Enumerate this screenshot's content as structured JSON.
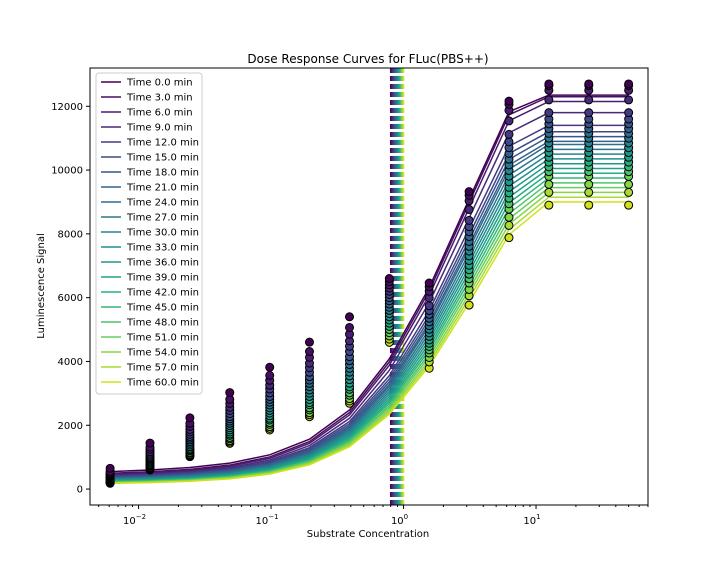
{
  "chart_data": {
    "type": "line",
    "title": "Dose Response Curves for FLuc(PBS++)",
    "xlabel": "Substrate Concentration",
    "ylabel": "Luminescence Signal",
    "x_scale": "log",
    "xlim": [
      0.0043,
      70
    ],
    "ylim": [
      -500,
      13200
    ],
    "grid": false,
    "legend_position": "top-left",
    "x_ticks": [
      {
        "value": 0.01,
        "base": "10",
        "exp": "−2"
      },
      {
        "value": 0.1,
        "base": "10",
        "exp": "−1"
      },
      {
        "value": 1,
        "base": "10",
        "exp": "0"
      },
      {
        "value": 10,
        "base": "10",
        "exp": "1"
      }
    ],
    "y_ticks": [
      "0",
      "2000",
      "4000",
      "6000",
      "8000",
      "10000",
      "12000"
    ],
    "concentrations": [
      0.0061,
      0.0122,
      0.0244,
      0.0488,
      0.0977,
      0.195,
      0.391,
      0.781,
      1.5625,
      3.125,
      6.25,
      12.5,
      25,
      50
    ],
    "colors": [
      "#440154",
      "#470f62",
      "#481d6f",
      "#472a7a",
      "#443983",
      "#3f4889",
      "#3a548c",
      "#34608d",
      "#2f6c8e",
      "#2a768e",
      "#26828e",
      "#228d8d",
      "#1f988b",
      "#1fa287",
      "#26ad81",
      "#35b779",
      "#4ec36b",
      "#69cd5b",
      "#86d549",
      "#a8db34",
      "#d0e11c",
      "#fde725"
    ],
    "series": [
      {
        "name": "Time 0.0 min",
        "ec50": 0.8,
        "curve_low": 700,
        "curve_high": 12350,
        "obs_low": 650,
        "obs_high": 12700
      },
      {
        "name": "Time 3.0 min",
        "ec50": 0.81,
        "curve_low": 630,
        "curve_high": 12300,
        "obs_low": 560,
        "obs_high": 12650
      },
      {
        "name": "Time 6.0 min",
        "ec50": 0.82,
        "curve_low": 590,
        "curve_high": 12150,
        "obs_low": 520,
        "obs_high": 12500
      },
      {
        "name": "Time 9.0 min",
        "ec50": 0.83,
        "curve_low": 550,
        "curve_high": 11800,
        "obs_low": 480,
        "obs_high": 12200
      },
      {
        "name": "Time 12.0 min",
        "ec50": 0.84,
        "curve_low": 520,
        "curve_high": 11400,
        "obs_low": 450,
        "obs_high": 11800
      },
      {
        "name": "Time 15.0 min",
        "ec50": 0.85,
        "curve_low": 490,
        "curve_high": 11200,
        "obs_low": 420,
        "obs_high": 11600
      },
      {
        "name": "Time 18.0 min",
        "ec50": 0.86,
        "curve_low": 460,
        "curve_high": 11050,
        "obs_low": 400,
        "obs_high": 11450
      },
      {
        "name": "Time 21.0 min",
        "ec50": 0.87,
        "curve_low": 440,
        "curve_high": 10900,
        "obs_low": 380,
        "obs_high": 11300
      },
      {
        "name": "Time 24.0 min",
        "ec50": 0.88,
        "curve_low": 420,
        "curve_high": 10800,
        "obs_low": 360,
        "obs_high": 11150
      },
      {
        "name": "Time 27.0 min",
        "ec50": 0.89,
        "curve_low": 400,
        "curve_high": 10650,
        "obs_low": 340,
        "obs_high": 11000
      },
      {
        "name": "Time 30.0 min",
        "ec50": 0.9,
        "curve_low": 380,
        "curve_high": 10500,
        "obs_low": 320,
        "obs_high": 10850
      },
      {
        "name": "Time 33.0 min",
        "ec50": 0.91,
        "curve_low": 360,
        "curve_high": 10350,
        "obs_low": 300,
        "obs_high": 10700
      },
      {
        "name": "Time 36.0 min",
        "ec50": 0.92,
        "curve_low": 340,
        "curve_high": 10200,
        "obs_low": 280,
        "obs_high": 10550
      },
      {
        "name": "Time 39.0 min",
        "ec50": 0.93,
        "curve_low": 320,
        "curve_high": 10050,
        "obs_low": 260,
        "obs_high": 10400
      },
      {
        "name": "Time 42.0 min",
        "ec50": 0.94,
        "curve_low": 300,
        "curve_high": 9900,
        "obs_low": 250,
        "obs_high": 10250
      },
      {
        "name": "Time 45.0 min",
        "ec50": 0.95,
        "curve_low": 290,
        "curve_high": 9750,
        "obs_low": 240,
        "obs_high": 10100
      },
      {
        "name": "Time 48.0 min",
        "ec50": 0.96,
        "curve_low": 270,
        "curve_high": 9600,
        "obs_low": 220,
        "obs_high": 9950
      },
      {
        "name": "Time 51.0 min",
        "ec50": 0.97,
        "curve_low": 260,
        "curve_high": 9450,
        "obs_low": 210,
        "obs_high": 9800
      },
      {
        "name": "Time 54.0 min",
        "ec50": 0.98,
        "curve_low": 240,
        "curve_high": 9300,
        "obs_low": 200,
        "obs_high": 9550
      },
      {
        "name": "Time 57.0 min",
        "ec50": 0.99,
        "curve_low": 230,
        "curve_high": 9150,
        "obs_low": 190,
        "obs_high": 9300
      },
      {
        "name": "Time 60.0 min",
        "ec50": 1.0,
        "curve_low": 220,
        "curve_high": 9000,
        "obs_low": 180,
        "obs_high": 8900
      }
    ]
  }
}
